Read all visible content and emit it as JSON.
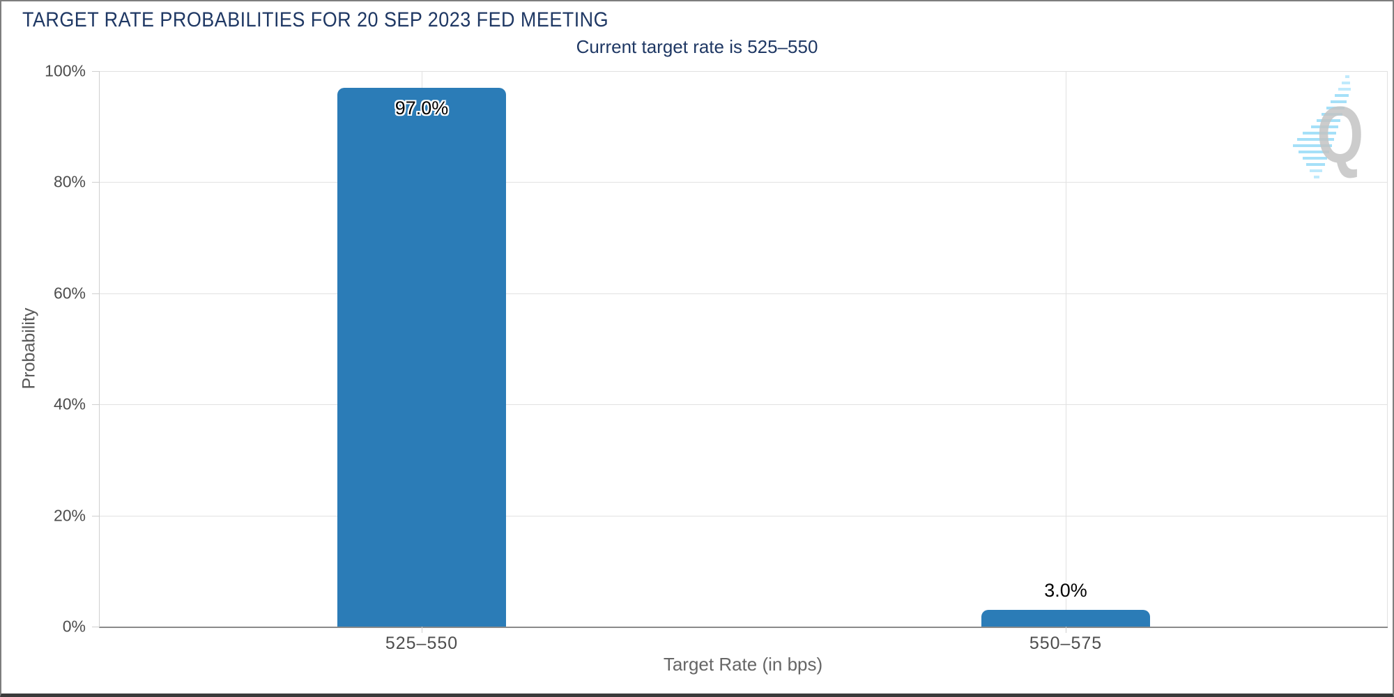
{
  "header": {
    "title": "TARGET RATE PROBABILITIES FOR 20 SEP 2023 FED MEETING",
    "subtitle": "Current target rate is 525–550"
  },
  "colors": {
    "title_text": "#1f3864",
    "bar": "#2b7cb7",
    "grid": "#e1e1e1",
    "axis_line": "#8a8a8a",
    "tick_text": "#4d4d4d",
    "axis_title_text": "#666666",
    "logo_gray": "#c4c4c4",
    "logo_blue": "#a5e0f8"
  },
  "logo": {
    "letter": "Q"
  },
  "chart_data": {
    "type": "bar",
    "title": "TARGET RATE PROBABILITIES FOR 20 SEP 2023 FED MEETING",
    "subtitle": "Current target rate is 525–550",
    "categories": [
      "525–550",
      "550–575"
    ],
    "values": [
      97.0,
      3.0
    ],
    "value_labels": [
      "97.0%",
      "3.0%"
    ],
    "xlabel": "Target Rate (in bps)",
    "ylabel": "Probability",
    "ylim": [
      0,
      100
    ],
    "yticks": [
      0,
      20,
      40,
      60,
      80,
      100
    ],
    "ytick_labels": [
      "0%",
      "20%",
      "40%",
      "60%",
      "80%",
      "100%"
    ],
    "grid": true,
    "legend": false,
    "bar_color": "#2b7cb7"
  }
}
